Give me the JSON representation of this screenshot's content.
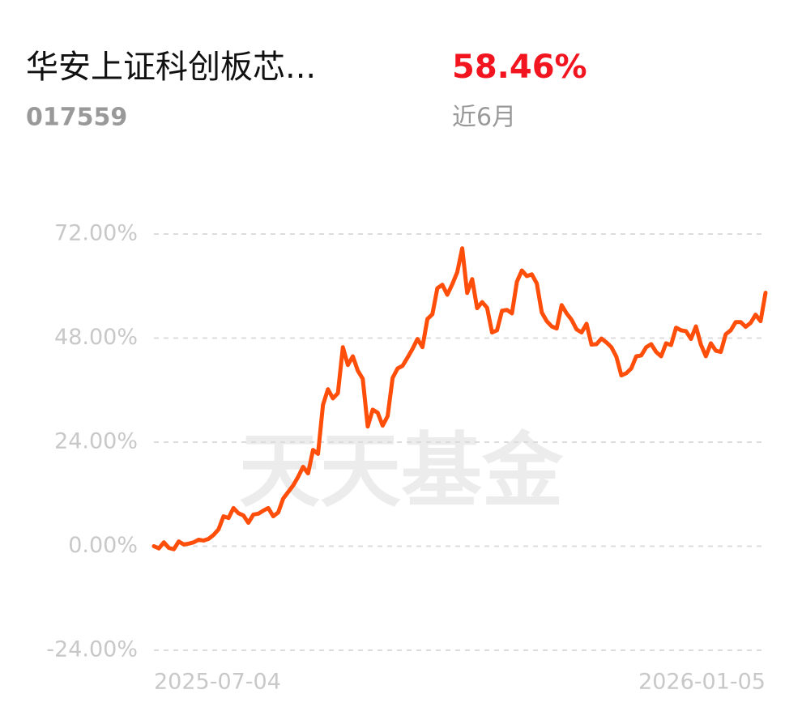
{
  "fund_name": "华安上证科创板芯...",
  "fund_code": "017559",
  "return_value": "58.46%",
  "period": "近6月",
  "watermark": "天天基金",
  "chart_data": {
    "type": "line",
    "color": "#ff4d0a",
    "grid": true,
    "ylim": [
      -24,
      72
    ],
    "yticks": [
      {
        "value": -24,
        "label": "-24.00%"
      },
      {
        "value": 0,
        "label": "0.00%"
      },
      {
        "value": 24,
        "label": "24.00%"
      },
      {
        "value": 48,
        "label": "48.00%"
      },
      {
        "value": 72,
        "label": "72.00%"
      }
    ],
    "categories": [
      "2025-07-04",
      null,
      null,
      null,
      null,
      null,
      null,
      null,
      null,
      null,
      null,
      null,
      null,
      null,
      null,
      null,
      null,
      null,
      null,
      null,
      null,
      null,
      null,
      null,
      null,
      null,
      null,
      null,
      null,
      null,
      null,
      null,
      null,
      null,
      null,
      null,
      null,
      null,
      null,
      null,
      null,
      null,
      null,
      null,
      null,
      null,
      null,
      null,
      null,
      null,
      null,
      null,
      null,
      null,
      null,
      null,
      null,
      null,
      null,
      null,
      null,
      null,
      null,
      null,
      null,
      null,
      null,
      null,
      null,
      null,
      null,
      null,
      null,
      null,
      null,
      null,
      null,
      null,
      null,
      null,
      null,
      null,
      null,
      null,
      null,
      null,
      null,
      null,
      null,
      null,
      null,
      null,
      null,
      null,
      null,
      null,
      null,
      null,
      null,
      null,
      null,
      null,
      null,
      null,
      null,
      null,
      null,
      null,
      null,
      null,
      null,
      null,
      null,
      null,
      null,
      null,
      null,
      null,
      null,
      null,
      null,
      null,
      null,
      "2026-01-05"
    ],
    "values": [
      0,
      -0.5,
      0.9,
      -0.4,
      -0.7,
      1.1,
      0.4,
      0.6,
      0.9,
      1.5,
      1.3,
      1.7,
      2.6,
      3.9,
      6.9,
      6.5,
      8.8,
      7.6,
      7.1,
      5.4,
      7.3,
      7.5,
      8.2,
      8.8,
      6.9,
      7.8,
      11.0,
      12.5,
      14.0,
      16.0,
      18.3,
      16.8,
      22.2,
      21.3,
      32.6,
      36.2,
      34.1,
      35.3,
      45.9,
      41.8,
      43.8,
      40.5,
      38.6,
      27.6,
      31.5,
      30.8,
      27.8,
      30.0,
      38.8,
      41.0,
      41.6,
      43.5,
      45.5,
      47.8,
      45.9,
      52.4,
      53.5,
      59.5,
      60.3,
      58.0,
      60.4,
      63.2,
      68.7,
      58.4,
      61.6,
      54.9,
      56.3,
      55.0,
      49.3,
      49.8,
      54.3,
      54.5,
      53.7,
      61.0,
      63.6,
      62.3,
      62.7,
      60.6,
      53.9,
      51.9,
      50.7,
      50.2,
      55.6,
      53.7,
      52.2,
      50.0,
      49.3,
      51.3,
      46.5,
      46.6,
      47.9,
      47.0,
      45.9,
      43.7,
      39.4,
      39.9,
      41.0,
      43.8,
      44.0,
      45.9,
      46.6,
      44.8,
      43.8,
      46.8,
      46.4,
      50.4,
      49.8,
      49.6,
      47.8,
      50.7,
      46.5,
      43.8,
      46.8,
      45.1,
      44.8,
      48.9,
      49.8,
      51.7,
      51.7,
      50.6,
      51.5,
      53.4,
      51.9,
      58.46
    ]
  }
}
